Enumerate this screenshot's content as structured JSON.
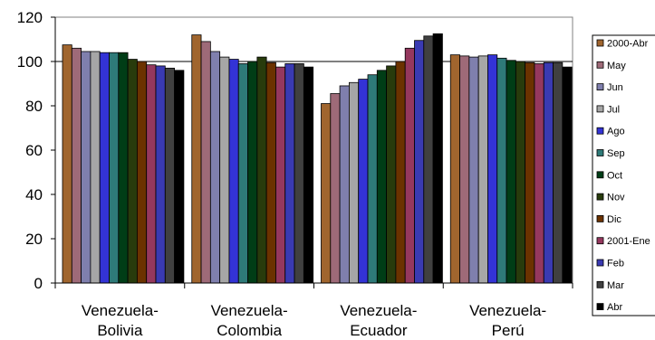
{
  "chart_data": {
    "type": "bar",
    "categories": [
      "Venezuela-\nBolivia",
      "Venezuela-\nColombia",
      "Venezuela-\nEcuador",
      "Venezuela-\nPerú"
    ],
    "ylim": [
      0,
      120
    ],
    "yticks": [
      0,
      20,
      40,
      60,
      80,
      100,
      120
    ],
    "grid": "horizontal line at 100",
    "legend_position": "right",
    "series": [
      {
        "name": "2000-Abr",
        "color": "#A0652E",
        "values": [
          107.5,
          112.0,
          81.0,
          103.0
        ]
      },
      {
        "name": "May",
        "color": "#9E6A78",
        "values": [
          106.0,
          109.0,
          85.5,
          102.5
        ]
      },
      {
        "name": "Jun",
        "color": "#7F7FAD",
        "values": [
          104.5,
          104.5,
          89.0,
          102.0
        ]
      },
      {
        "name": "Jul",
        "color": "#A6A6A6",
        "values": [
          104.5,
          102.0,
          90.5,
          102.5
        ]
      },
      {
        "name": "Ago",
        "color": "#3333D6",
        "values": [
          104.0,
          101.0,
          92.0,
          103.0
        ]
      },
      {
        "name": "Sep",
        "color": "#2E7A78",
        "values": [
          104.0,
          99.0,
          94.0,
          101.5
        ]
      },
      {
        "name": "Oct",
        "color": "#003D16",
        "values": [
          104.0,
          100.0,
          96.0,
          100.5
        ]
      },
      {
        "name": "Nov",
        "color": "#283B0C",
        "values": [
          101.0,
          102.0,
          98.0,
          100.0
        ]
      },
      {
        "name": "Dic",
        "color": "#6B3200",
        "values": [
          100.0,
          99.5,
          100.0,
          99.5
        ]
      },
      {
        "name": "2001-Ene",
        "color": "#95385E",
        "values": [
          98.5,
          97.5,
          106.0,
          99.0
        ]
      },
      {
        "name": "Feb",
        "color": "#3A3AB2",
        "values": [
          98.0,
          99.0,
          109.5,
          99.5
        ]
      },
      {
        "name": "Mar",
        "color": "#404040",
        "values": [
          97.0,
          99.0,
          111.5,
          99.5
        ]
      },
      {
        "name": "Abr",
        "color": "#000000",
        "values": [
          96.0,
          97.5,
          112.5,
          97.5
        ]
      }
    ]
  }
}
